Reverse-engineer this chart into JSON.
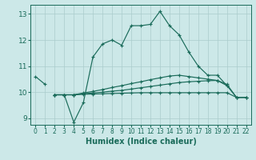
{
  "title": "",
  "xlabel": "Humidex (Indice chaleur)",
  "xlim": [
    -0.5,
    22.5
  ],
  "ylim": [
    8.75,
    13.35
  ],
  "yticks": [
    9,
    10,
    11,
    12,
    13
  ],
  "xticks": [
    0,
    1,
    2,
    3,
    4,
    5,
    6,
    7,
    8,
    9,
    10,
    11,
    12,
    13,
    14,
    15,
    16,
    17,
    18,
    19,
    20,
    21,
    22
  ],
  "bg_color": "#cce8e8",
  "grid_color": "#aacccc",
  "line_color": "#1a6b5a",
  "lines": [
    {
      "x": [
        0,
        1
      ],
      "y": [
        10.6,
        10.3
      ]
    },
    {
      "x": [
        2,
        3,
        4,
        5,
        6,
        7,
        8,
        9,
        10,
        11,
        12,
        13,
        14,
        15,
        16,
        17,
        18,
        19,
        20
      ],
      "y": [
        9.9,
        9.9,
        8.85,
        9.6,
        11.35,
        11.85,
        12.0,
        11.8,
        12.55,
        12.55,
        12.6,
        13.1,
        12.55,
        12.2,
        11.55,
        11.0,
        10.65,
        10.65,
        10.25
      ]
    },
    {
      "x": [
        2,
        3,
        4,
        5,
        6,
        7,
        8,
        9,
        10,
        11,
        12,
        13,
        14,
        15,
        16,
        17,
        18,
        19,
        20,
        21,
        22
      ],
      "y": [
        9.9,
        9.9,
        9.9,
        9.97,
        10.03,
        10.1,
        10.18,
        10.25,
        10.33,
        10.4,
        10.48,
        10.55,
        10.62,
        10.65,
        10.6,
        10.55,
        10.5,
        10.45,
        10.25,
        9.8,
        9.8
      ]
    },
    {
      "x": [
        2,
        3,
        4,
        5,
        6,
        7,
        8,
        9,
        10,
        11,
        12,
        13,
        14,
        15,
        16,
        17,
        18,
        19,
        20,
        21,
        22
      ],
      "y": [
        9.9,
        9.9,
        9.9,
        9.94,
        9.97,
        10.0,
        10.04,
        10.07,
        10.12,
        10.17,
        10.22,
        10.27,
        10.32,
        10.37,
        10.4,
        10.42,
        10.44,
        10.45,
        10.3,
        9.8,
        9.8
      ]
    },
    {
      "x": [
        2,
        3,
        4,
        5,
        6,
        7,
        8,
        9,
        10,
        11,
        12,
        13,
        14,
        15,
        16,
        17,
        18,
        19,
        20,
        21,
        22
      ],
      "y": [
        9.9,
        9.9,
        9.9,
        9.92,
        9.93,
        9.94,
        9.95,
        9.96,
        9.97,
        9.98,
        9.98,
        9.98,
        9.98,
        9.98,
        9.98,
        9.98,
        9.98,
        9.98,
        9.98,
        9.8,
        9.8
      ]
    }
  ]
}
